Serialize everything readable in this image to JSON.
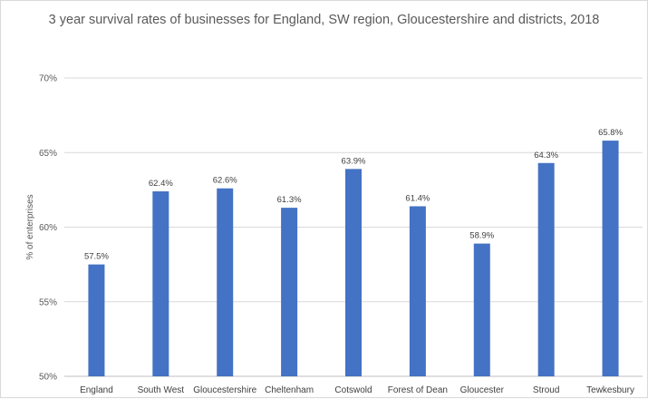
{
  "chart_data": {
    "type": "bar",
    "title": "3 year survival rates of businesses for England, SW region, Gloucestershire and districts, 2018",
    "xlabel": "",
    "ylabel": "% of enterprises",
    "ylim": [
      50,
      70
    ],
    "yticks": [
      50,
      55,
      60,
      65,
      70
    ],
    "ytick_labels": [
      "50%",
      "55%",
      "60%",
      "65%",
      "70%"
    ],
    "categories": [
      "England",
      "South West",
      "Gloucestershire",
      "Cheltenham",
      "Cotswold",
      "Forest of Dean",
      "Gloucester",
      "Stroud",
      "Tewkesbury"
    ],
    "values": [
      57.5,
      62.4,
      62.6,
      61.3,
      63.9,
      61.4,
      58.9,
      64.3,
      65.8
    ],
    "data_labels": [
      "57.5%",
      "62.4%",
      "62.6%",
      "61.3%",
      "63.9%",
      "61.4%",
      "58.9%",
      "64.3%",
      "65.8%"
    ],
    "bar_color": "#4472C4",
    "grid": true,
    "legend": "none"
  }
}
